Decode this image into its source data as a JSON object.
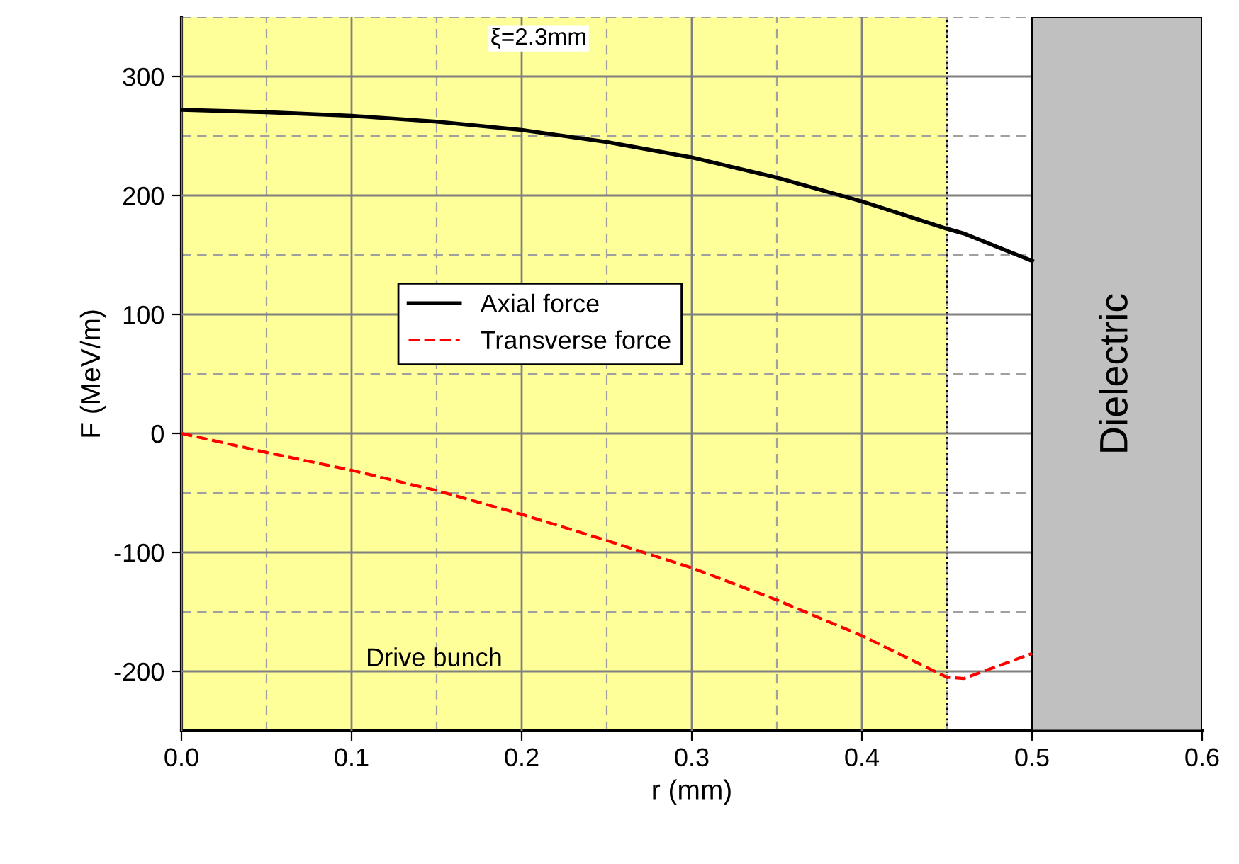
{
  "chart_data": {
    "type": "line",
    "xlabel": "r (mm)",
    "ylabel": "F (MeV/m)",
    "x": [
      0,
      0.05,
      0.1,
      0.15,
      0.2,
      0.25,
      0.3,
      0.35,
      0.4,
      0.45,
      0.46,
      0.5
    ],
    "series": [
      {
        "name": "Axial force",
        "color": "#000000",
        "line_style": "solid",
        "values": [
          272,
          270,
          267,
          262,
          255,
          245,
          232,
          215,
          195,
          172,
          168,
          145
        ]
      },
      {
        "name": "Transverse force",
        "color": "#ff0000",
        "line_style": "dashed",
        "values": [
          0,
          -16,
          -31,
          -48,
          -68,
          -90,
          -113,
          -140,
          -170,
          -205,
          -206,
          -185
        ]
      }
    ],
    "xlim": [
      0,
      0.6
    ],
    "xticks": [
      {
        "value": 0,
        "label": "0.0"
      },
      0.1,
      0.2,
      0.3,
      0.4,
      0.5,
      0.6
    ],
    "ylim": [
      -250,
      350
    ],
    "yticks": [
      -200,
      -100,
      0,
      100,
      200,
      300
    ],
    "grid": true,
    "legend": "center left",
    "bands": [
      {
        "axis": "x",
        "from": 0,
        "to": 0.45,
        "label": "Drive bunch",
        "color": "#ffff99"
      },
      {
        "axis": "x",
        "from": 0.5,
        "to": 0.6,
        "label": "Dielectric",
        "color": "#c0c0c0"
      }
    ],
    "ref_lines": [
      {
        "axis": "x",
        "value": 0.45,
        "line_style": "dotted",
        "color": "#000000"
      }
    ],
    "annotations": [
      "ξ=2.3mm"
    ]
  }
}
